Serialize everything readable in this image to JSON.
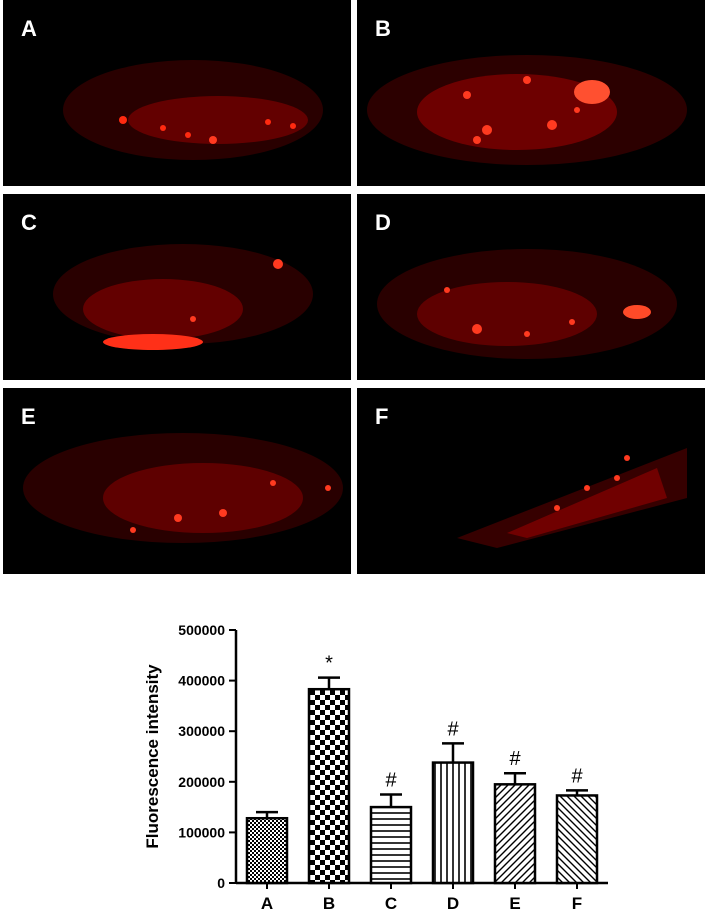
{
  "panels": [
    {
      "label": "A"
    },
    {
      "label": "B"
    },
    {
      "label": "C"
    },
    {
      "label": "D"
    },
    {
      "label": "E"
    },
    {
      "label": "F"
    }
  ],
  "colors": {
    "panel_background": "#000000",
    "fluorescence": "#e01010",
    "bar_edge": "#000000"
  },
  "chart_data": {
    "type": "bar",
    "title": "",
    "xlabel": "",
    "ylabel": "Fluorescence intensity",
    "categories": [
      "A",
      "B",
      "C",
      "D",
      "E",
      "F"
    ],
    "values": [
      128000,
      383000,
      150000,
      238000,
      195000,
      173000
    ],
    "errors": [
      12000,
      23000,
      25000,
      38000,
      22000,
      10000
    ],
    "significance": [
      "",
      "*",
      "#",
      "#",
      "#",
      "#"
    ],
    "patterns": [
      "checker-small",
      "checker-large",
      "horizontal",
      "vertical",
      "diagonal-up",
      "diagonal-down"
    ],
    "ylim": [
      0,
      500000
    ],
    "yticks": [
      0,
      100000,
      200000,
      300000,
      400000,
      500000
    ],
    "ytick_labels": [
      "0",
      "100000",
      "200000",
      "300000",
      "400000",
      "500000"
    ],
    "grid": false,
    "legend": "none"
  }
}
